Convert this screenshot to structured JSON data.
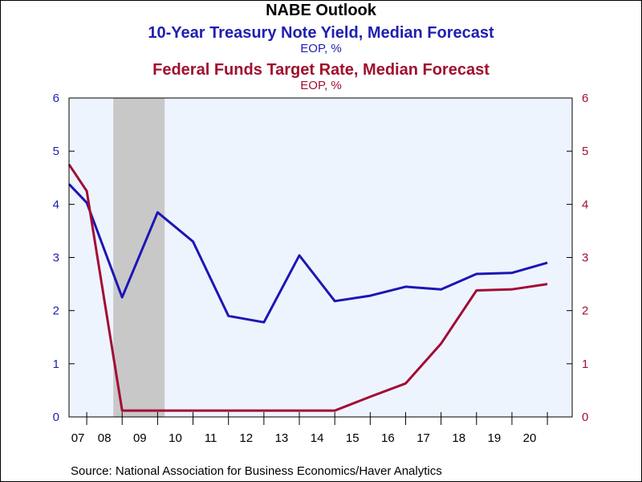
{
  "titles": {
    "main": "NABE Outlook",
    "series1_title": "10-Year Treasury Note Yield, Median Forecast",
    "series1_unit": "EOP, %",
    "series2_title": "Federal Funds Target Rate, Median Forecast",
    "series2_unit": "EOP, %"
  },
  "source": "Source:  National Association for Business Economics/Haver Analytics",
  "colors": {
    "series1": "#1c16b5",
    "series2": "#a30a35",
    "plot_background": "#eef4fd",
    "recession_shading": "#c8c8c8",
    "left_axis_text": "#1f1fb0",
    "right_axis_text": "#a0102e"
  },
  "chart_data": {
    "type": "line",
    "title": "NABE Outlook",
    "x_tick_labels": [
      "07",
      "08",
      "09",
      "10",
      "11",
      "12",
      "13",
      "14",
      "15",
      "16",
      "17",
      "18",
      "19",
      "20"
    ],
    "xlim": [
      2006.5,
      2020.7
    ],
    "y_left": {
      "ylim": [
        0,
        6
      ],
      "ticks": [
        "0",
        "1",
        "2",
        "3",
        "4",
        "5",
        "6"
      ]
    },
    "y_right": {
      "ylim": [
        0,
        6
      ],
      "ticks": [
        "0",
        "1",
        "2",
        "3",
        "4",
        "5",
        "6"
      ]
    },
    "grid": false,
    "recession_shading": [
      {
        "start": 2007.75,
        "end": 2009.2
      }
    ],
    "series": [
      {
        "name": "10-Year Treasury Note Yield, Median Forecast",
        "color": "#1c16b5",
        "x": [
          2006.5,
          2007.0,
          2008.0,
          2009.0,
          2010.0,
          2011.0,
          2012.0,
          2013.0,
          2014.0,
          2015.0,
          2016.0,
          2017.0,
          2018.0,
          2019.0,
          2020.0
        ],
        "y": [
          4.38,
          4.03,
          2.25,
          3.85,
          3.3,
          1.9,
          1.78,
          3.04,
          2.18,
          2.28,
          2.45,
          2.4,
          2.69,
          2.71,
          2.9
        ]
      },
      {
        "name": "Federal Funds Target Rate, Median Forecast",
        "color": "#a30a35",
        "x": [
          2006.5,
          2007.0,
          2008.0,
          2009.0,
          2010.0,
          2011.0,
          2012.0,
          2013.0,
          2014.0,
          2015.0,
          2016.0,
          2017.0,
          2018.0,
          2019.0,
          2020.0
        ],
        "y": [
          4.75,
          4.25,
          0.12,
          0.12,
          0.12,
          0.12,
          0.12,
          0.12,
          0.12,
          0.38,
          0.63,
          1.38,
          2.38,
          2.4,
          2.5
        ]
      }
    ]
  }
}
